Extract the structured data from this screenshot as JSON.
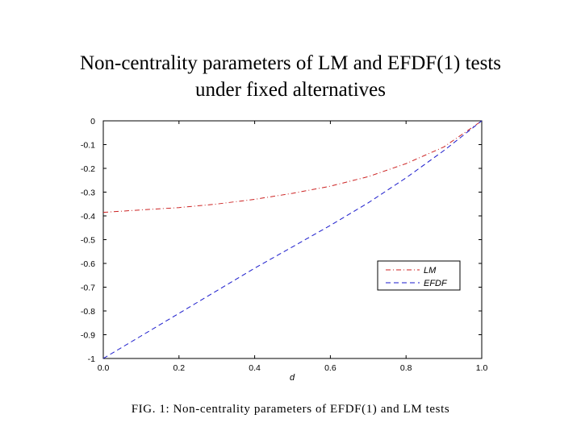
{
  "slide": {
    "title_line1": "Non-centrality parameters of LM and EFDF(1) tests",
    "title_line2": "under fixed alternatives"
  },
  "caption": {
    "label": "FIG. 1:",
    "text": "Non-centrality parameters of EFDF(1) and LM tests"
  },
  "colors": {
    "lm": "#cc2222",
    "efdf": "#1a1acc",
    "axis": "#000000"
  },
  "chart_data": {
    "type": "line",
    "title": "",
    "xlabel": "d",
    "ylabel": "",
    "xlim": [
      0.0,
      1.0
    ],
    "ylim": [
      -1.0,
      0.0
    ],
    "xticks": [
      "0.0",
      "0.2",
      "0.4",
      "0.6",
      "0.8",
      "1.0"
    ],
    "yticks": [
      "0",
      "-0.1",
      "-0.2",
      "-0.3",
      "-0.4",
      "-0.5",
      "-0.6",
      "-0.7",
      "-0.8",
      "-0.9",
      "-1"
    ],
    "grid": false,
    "legend": "center-right",
    "series": [
      {
        "name": "LM",
        "style": "dashdot",
        "x": [
          0.0,
          0.1,
          0.2,
          0.3,
          0.4,
          0.5,
          0.6,
          0.7,
          0.8,
          0.9,
          1.0
        ],
        "y": [
          -0.385,
          -0.375,
          -0.365,
          -0.35,
          -0.33,
          -0.305,
          -0.275,
          -0.235,
          -0.18,
          -0.11,
          0.0
        ]
      },
      {
        "name": "EFDF",
        "style": "dashed",
        "x": [
          0.0,
          0.1,
          0.2,
          0.3,
          0.4,
          0.5,
          0.6,
          0.7,
          0.8,
          0.9,
          1.0
        ],
        "y": [
          -1.0,
          -0.905,
          -0.81,
          -0.715,
          -0.62,
          -0.53,
          -0.44,
          -0.345,
          -0.24,
          -0.125,
          0.0
        ]
      }
    ]
  }
}
